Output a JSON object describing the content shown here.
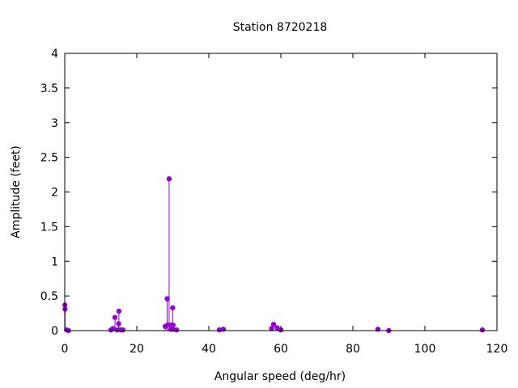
{
  "chart_data": {
    "type": "stem",
    "title": "Station 8720218",
    "xlabel": "Angular speed (deg/hr)",
    "ylabel": "Amplitude (feet)",
    "xlim": [
      0,
      120
    ],
    "ylim": [
      0,
      4
    ],
    "xticks": [
      "0",
      "20",
      "40",
      "60",
      "80",
      "100",
      "120"
    ],
    "yticks": [
      "0",
      "0.5",
      "1",
      "1.5",
      "2",
      "2.5",
      "3",
      "3.5",
      "4"
    ],
    "grid": false,
    "series_color": "#9400d3",
    "points": [
      {
        "x": 0.04,
        "y": 0.37
      },
      {
        "x": 0.08,
        "y": 0.31
      },
      {
        "x": 0.54,
        "y": 0.01
      },
      {
        "x": 1.02,
        "y": 0.0
      },
      {
        "x": 12.85,
        "y": 0.01
      },
      {
        "x": 13.4,
        "y": 0.03
      },
      {
        "x": 13.94,
        "y": 0.19
      },
      {
        "x": 14.5,
        "y": 0.01
      },
      {
        "x": 14.96,
        "y": 0.1
      },
      {
        "x": 15.04,
        "y": 0.28
      },
      {
        "x": 15.59,
        "y": 0.01
      },
      {
        "x": 16.14,
        "y": 0.01
      },
      {
        "x": 27.9,
        "y": 0.06
      },
      {
        "x": 28.44,
        "y": 0.46
      },
      {
        "x": 28.51,
        "y": 0.08
      },
      {
        "x": 28.98,
        "y": 2.19
      },
      {
        "x": 29.46,
        "y": 0.02
      },
      {
        "x": 29.53,
        "y": 0.08
      },
      {
        "x": 29.96,
        "y": 0.33
      },
      {
        "x": 30.08,
        "y": 0.08
      },
      {
        "x": 30.0,
        "y": 0.02
      },
      {
        "x": 31.02,
        "y": 0.01
      },
      {
        "x": 42.93,
        "y": 0.01
      },
      {
        "x": 44.03,
        "y": 0.02
      },
      {
        "x": 57.42,
        "y": 0.03
      },
      {
        "x": 57.97,
        "y": 0.09
      },
      {
        "x": 58.98,
        "y": 0.04
      },
      {
        "x": 60.0,
        "y": 0.01
      },
      {
        "x": 86.95,
        "y": 0.02
      },
      {
        "x": 89.97,
        "y": 0.0
      },
      {
        "x": 115.94,
        "y": 0.01
      }
    ]
  }
}
